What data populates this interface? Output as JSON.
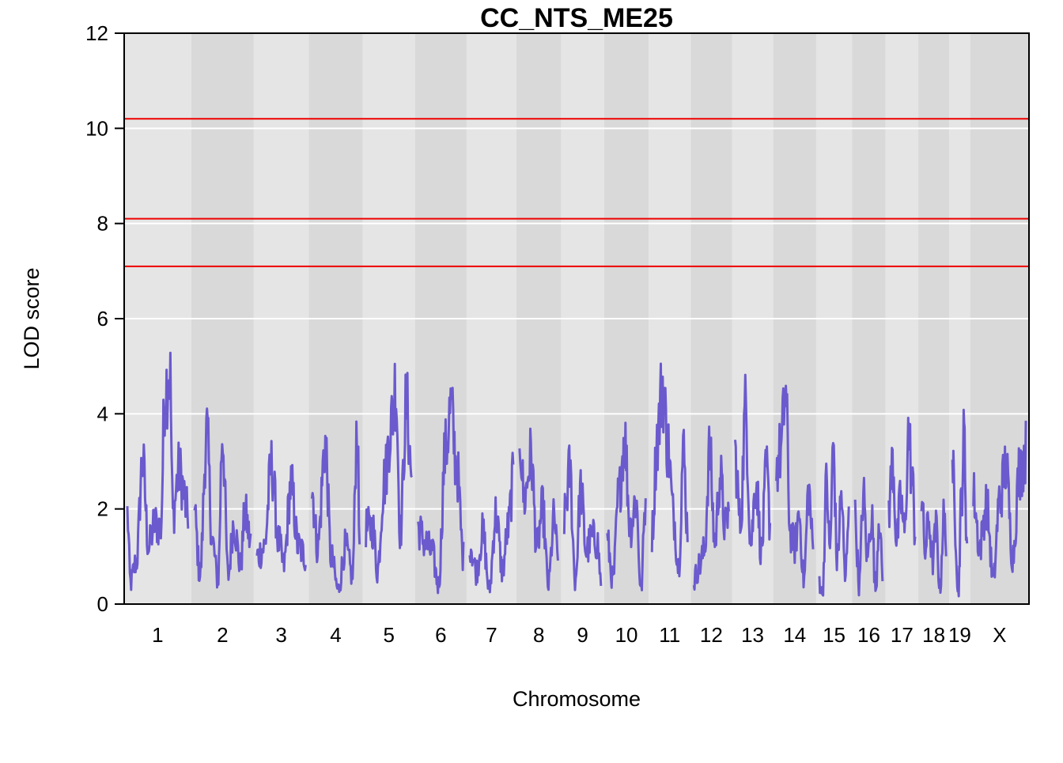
{
  "chart_data": {
    "type": "line",
    "title": "CC_NTS_ME25",
    "xlabel": "Chromosome",
    "ylabel": "LOD score",
    "ylim": [
      0,
      12
    ],
    "yticks": [
      0,
      2,
      4,
      6,
      8,
      10,
      12
    ],
    "grid": true,
    "line_color": "#6a5acd",
    "threshold_color": "#ee0000",
    "thresholds": [
      7.1,
      8.1,
      10.2
    ],
    "chromosomes": [
      {
        "label": "1",
        "length": 195,
        "peaks": [
          [
            0.0,
            1.9
          ],
          [
            0.05,
            0.45
          ],
          [
            0.15,
            0.9
          ],
          [
            0.25,
            3.0
          ],
          [
            0.35,
            1.2
          ],
          [
            0.45,
            1.7
          ],
          [
            0.55,
            1.6
          ],
          [
            0.62,
            4.5
          ],
          [
            0.7,
            4.9
          ],
          [
            0.75,
            1.9
          ],
          [
            0.85,
            2.8
          ],
          [
            1.0,
            1.9
          ]
        ]
      },
      {
        "label": "2",
        "length": 182,
        "peaks": [
          [
            0.0,
            1.9
          ],
          [
            0.1,
            0.6
          ],
          [
            0.22,
            3.6
          ],
          [
            0.32,
            1.3
          ],
          [
            0.42,
            0.5
          ],
          [
            0.5,
            3.6
          ],
          [
            0.6,
            0.6
          ],
          [
            0.7,
            1.7
          ],
          [
            0.82,
            0.8
          ],
          [
            0.9,
            1.9
          ],
          [
            1.0,
            1.3
          ]
        ]
      },
      {
        "label": "3",
        "length": 160,
        "peaks": [
          [
            0.0,
            1.0
          ],
          [
            0.15,
            1.2
          ],
          [
            0.3,
            2.9
          ],
          [
            0.45,
            1.3
          ],
          [
            0.55,
            0.8
          ],
          [
            0.7,
            2.5
          ],
          [
            0.85,
            1.2
          ],
          [
            1.0,
            1.0
          ]
        ]
      },
      {
        "label": "4",
        "length": 157,
        "peaks": [
          [
            0.0,
            2.4
          ],
          [
            0.12,
            1.2
          ],
          [
            0.28,
            3.4
          ],
          [
            0.4,
            1.0
          ],
          [
            0.55,
            0.3
          ],
          [
            0.7,
            1.2
          ],
          [
            0.85,
            0.6
          ],
          [
            0.95,
            3.8
          ],
          [
            1.0,
            1.3
          ]
        ]
      },
      {
        "label": "5",
        "length": 152,
        "peaks": [
          [
            0.0,
            1.6
          ],
          [
            0.15,
            1.6
          ],
          [
            0.25,
            0.7
          ],
          [
            0.4,
            2.6
          ],
          [
            0.55,
            3.8
          ],
          [
            0.65,
            4.6
          ],
          [
            0.75,
            1.5
          ],
          [
            0.88,
            4.2
          ],
          [
            1.0,
            2.7
          ]
        ]
      },
      {
        "label": "6",
        "length": 150,
        "peaks": [
          [
            0.0,
            1.6
          ],
          [
            0.15,
            1.3
          ],
          [
            0.3,
            1.1
          ],
          [
            0.45,
            0.4
          ],
          [
            0.6,
            3.2
          ],
          [
            0.72,
            4.1
          ],
          [
            0.85,
            2.9
          ],
          [
            1.0,
            1.0
          ]
        ]
      },
      {
        "label": "7",
        "length": 145,
        "peaks": [
          [
            0.0,
            1.3
          ],
          [
            0.15,
            0.7
          ],
          [
            0.3,
            1.5
          ],
          [
            0.45,
            0.3
          ],
          [
            0.6,
            1.9
          ],
          [
            0.75,
            0.7
          ],
          [
            0.88,
            1.6
          ],
          [
            1.0,
            2.6
          ]
        ]
      },
      {
        "label": "8",
        "length": 130,
        "peaks": [
          [
            0.0,
            3.6
          ],
          [
            0.12,
            2.2
          ],
          [
            0.3,
            3.1
          ],
          [
            0.45,
            1.2
          ],
          [
            0.6,
            2.0
          ],
          [
            0.75,
            0.4
          ],
          [
            0.9,
            1.8
          ],
          [
            1.0,
            0.9
          ]
        ]
      },
      {
        "label": "9",
        "length": 125,
        "peaks": [
          [
            0.0,
            1.8
          ],
          [
            0.15,
            2.8
          ],
          [
            0.3,
            0.5
          ],
          [
            0.45,
            2.4
          ],
          [
            0.6,
            1.1
          ],
          [
            0.75,
            1.4
          ],
          [
            0.9,
            1.3
          ],
          [
            1.0,
            0.5
          ]
        ]
      },
      {
        "label": "10",
        "length": 130,
        "peaks": [
          [
            0.0,
            1.3
          ],
          [
            0.15,
            0.5
          ],
          [
            0.3,
            2.3
          ],
          [
            0.45,
            3.5
          ],
          [
            0.6,
            1.6
          ],
          [
            0.75,
            2.2
          ],
          [
            0.88,
            0.3
          ],
          [
            1.0,
            2.2
          ]
        ]
      },
      {
        "label": "11",
        "length": 122,
        "peaks": [
          [
            0.0,
            1.5
          ],
          [
            0.15,
            3.5
          ],
          [
            0.3,
            4.6
          ],
          [
            0.45,
            3.3
          ],
          [
            0.6,
            1.9
          ],
          [
            0.75,
            0.8
          ],
          [
            0.88,
            3.2
          ],
          [
            1.0,
            1.6
          ]
        ]
      },
      {
        "label": "12",
        "length": 120,
        "peaks": [
          [
            0.0,
            0.5
          ],
          [
            0.15,
            0.8
          ],
          [
            0.3,
            1.1
          ],
          [
            0.45,
            3.2
          ],
          [
            0.6,
            1.3
          ],
          [
            0.75,
            2.7
          ],
          [
            0.9,
            1.6
          ],
          [
            1.0,
            2.0
          ]
        ]
      },
      {
        "label": "13",
        "length": 120,
        "peaks": [
          [
            0.0,
            3.1
          ],
          [
            0.15,
            1.7
          ],
          [
            0.3,
            4.1
          ],
          [
            0.45,
            1.3
          ],
          [
            0.6,
            2.6
          ],
          [
            0.75,
            1.1
          ],
          [
            0.9,
            2.8
          ],
          [
            1.0,
            1.7
          ]
        ]
      },
      {
        "label": "14",
        "length": 125,
        "peaks": [
          [
            0.0,
            2.9
          ],
          [
            0.12,
            3.2
          ],
          [
            0.25,
            4.4
          ],
          [
            0.38,
            1.5
          ],
          [
            0.5,
            1.2
          ],
          [
            0.62,
            1.9
          ],
          [
            0.75,
            0.5
          ],
          [
            0.88,
            2.4
          ],
          [
            1.0,
            1.2
          ]
        ]
      },
      {
        "label": "15",
        "length": 104,
        "peaks": [
          [
            0.0,
            0.5
          ],
          [
            0.1,
            0.2
          ],
          [
            0.25,
            2.6
          ],
          [
            0.35,
            1.1
          ],
          [
            0.48,
            3.3
          ],
          [
            0.6,
            0.9
          ],
          [
            0.75,
            2.3
          ],
          [
            0.88,
            0.5
          ],
          [
            1.0,
            2.2
          ]
        ]
      },
      {
        "label": "16",
        "length": 98,
        "peaks": [
          [
            0.0,
            1.8
          ],
          [
            0.15,
            0.4
          ],
          [
            0.3,
            2.3
          ],
          [
            0.45,
            1.0
          ],
          [
            0.6,
            1.9
          ],
          [
            0.75,
            0.3
          ],
          [
            0.88,
            1.9
          ],
          [
            1.0,
            0.6
          ]
        ]
      },
      {
        "label": "17",
        "length": 95,
        "peaks": [
          [
            0.0,
            2.0
          ],
          [
            0.15,
            3.0
          ],
          [
            0.3,
            1.3
          ],
          [
            0.45,
            2.2
          ],
          [
            0.6,
            1.5
          ],
          [
            0.75,
            3.6
          ],
          [
            0.9,
            2.5
          ],
          [
            1.0,
            1.5
          ]
        ]
      },
      {
        "label": "18",
        "length": 90,
        "peaks": [
          [
            0.0,
            2.3
          ],
          [
            0.15,
            1.1
          ],
          [
            0.3,
            1.8
          ],
          [
            0.45,
            0.9
          ],
          [
            0.6,
            1.6
          ],
          [
            0.75,
            0.3
          ],
          [
            0.9,
            1.8
          ],
          [
            1.0,
            1.4
          ]
        ]
      },
      {
        "label": "19",
        "length": 61,
        "peaks": [
          [
            0.0,
            3.0
          ],
          [
            0.2,
            1.6
          ],
          [
            0.4,
            0.2
          ],
          [
            0.6,
            2.1
          ],
          [
            0.8,
            3.5
          ],
          [
            1.0,
            1.2
          ]
        ]
      },
      {
        "label": "X",
        "length": 171,
        "peaks": [
          [
            0.0,
            2.3
          ],
          [
            0.12,
            1.2
          ],
          [
            0.25,
            2.1
          ],
          [
            0.38,
            0.5
          ],
          [
            0.5,
            2.2
          ],
          [
            0.62,
            2.9
          ],
          [
            0.75,
            1.0
          ],
          [
            0.88,
            2.8
          ],
          [
            1.0,
            3.2
          ]
        ]
      }
    ]
  }
}
